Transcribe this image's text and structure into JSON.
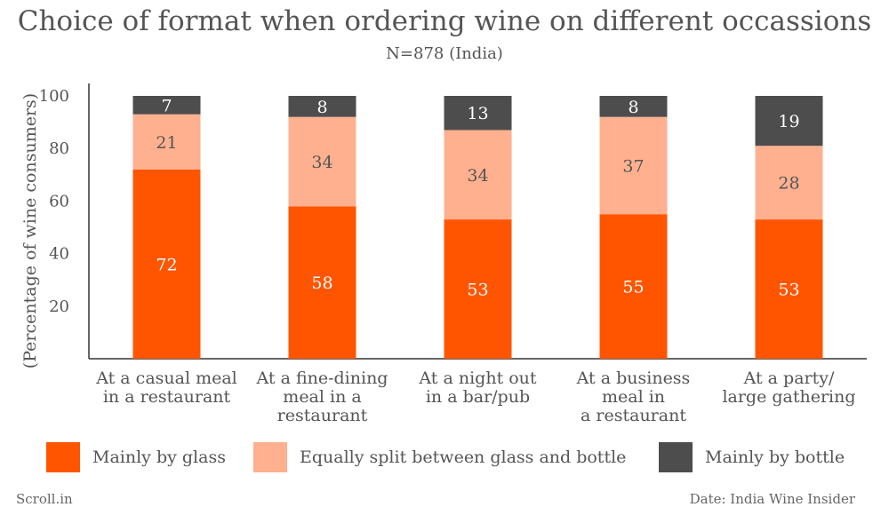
{
  "header": {
    "title": "Choice of format when ordering wine on different occassions",
    "subtitle": "N=878 (India)"
  },
  "colors": {
    "glass": "#ff5500",
    "split": "#ffb08f",
    "bottle": "#4d4d4d",
    "axis": "#333333",
    "text": "#555555"
  },
  "chart_data": {
    "type": "bar",
    "stacked": true,
    "ylabel": "(Percentage of wine consumers)",
    "ylim": [
      0,
      100
    ],
    "yticks": [
      20,
      40,
      60,
      80,
      100
    ],
    "grid": false,
    "legend_position": "bottom",
    "categories": [
      [
        "At a casual meal",
        "in a restaurant"
      ],
      [
        "At a fine-dining",
        "meal in a",
        "restaurant"
      ],
      [
        "At a night out",
        "in a bar/pub"
      ],
      [
        "At a business",
        "meal in",
        "a restaurant"
      ],
      [
        "At a party/",
        "large gathering"
      ]
    ],
    "series": [
      {
        "name": "Mainly by glass",
        "color_key": "glass",
        "values": [
          72,
          58,
          53,
          55,
          53
        ]
      },
      {
        "name": "Equally split between glass and bottle",
        "color_key": "split",
        "values": [
          21,
          34,
          34,
          37,
          28
        ]
      },
      {
        "name": "Mainly by bottle",
        "color_key": "bottle",
        "values": [
          7,
          8,
          13,
          8,
          19
        ]
      }
    ]
  },
  "footer": {
    "source_left": "Scroll.in",
    "source_right": "Date: India Wine Insider"
  }
}
